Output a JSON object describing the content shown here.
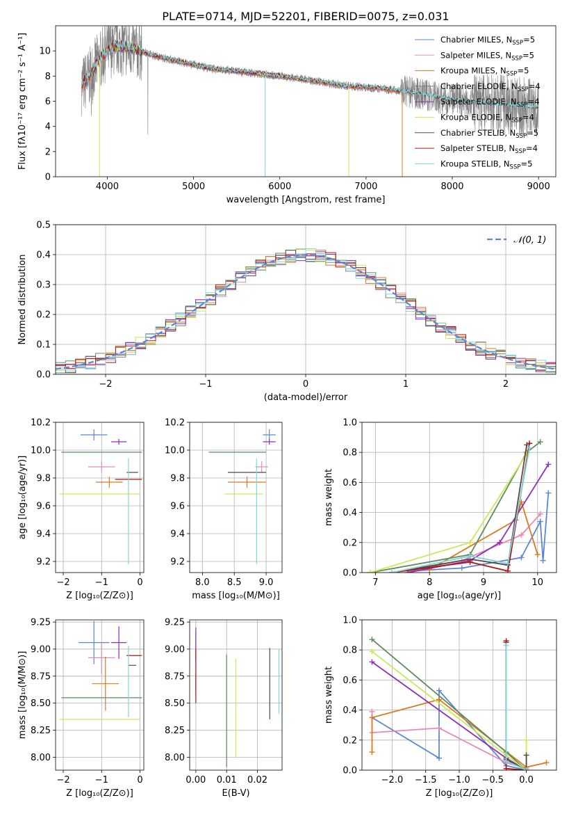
{
  "title": "PLATE=0714, MJD=52201, FIBERID=0075, z=0.031",
  "colors": {
    "chabrier_miles": "#5b86d6",
    "salpeter_miles": "#e58ab8",
    "kroupa_miles": "#d97a1e",
    "chabrier_elodie": "#5e8c5c",
    "salpeter_elodie": "#8e2fb5",
    "kroupa_elodie": "#cce85a",
    "chabrier_stelib": "#5a4646",
    "salpeter_stelib": "#b01414",
    "kroupa_stelib": "#7fd6d6",
    "data": "#808080",
    "normal": "#5b86d6",
    "grid": "#b0b0b0"
  },
  "chart_data": [
    {
      "id": "spectrum",
      "type": "line",
      "xlabel": "wavelength [Angstrom, rest frame]",
      "ylabel": "Flux [fλ10⁻¹⁷ erg cm⁻² s⁻¹ A⁻¹]",
      "xlim": [
        3400,
        9200
      ],
      "ylim": [
        0,
        12
      ],
      "xticks": [
        4000,
        5000,
        6000,
        7000,
        8000,
        9000
      ],
      "yticks": [
        0,
        2,
        4,
        6,
        8,
        10
      ],
      "grid": false,
      "legend_position": "top-right",
      "legend": [
        {
          "key": "chabrier_miles",
          "label": "Chabrier MILES, N",
          "sub": "SSP",
          "suffix": "=5"
        },
        {
          "key": "salpeter_miles",
          "label": "Salpeter MILES, N",
          "sub": "SSP",
          "suffix": "=5"
        },
        {
          "key": "kroupa_miles",
          "label": "Kroupa MILES, N",
          "sub": "SSP",
          "suffix": "=5"
        },
        {
          "key": "chabrier_elodie",
          "label": "Chabrier ELODIE, N",
          "sub": "SSP",
          "suffix": "=4"
        },
        {
          "key": "salpeter_elodie",
          "label": "Salpeter ELODIE, N",
          "sub": "SSP",
          "suffix": "=4"
        },
        {
          "key": "kroupa_elodie",
          "label": "Kroupa ELODIE, N",
          "sub": "SSP",
          "suffix": "=4"
        },
        {
          "key": "chabrier_stelib",
          "label": "Chabrier STELIB, N",
          "sub": "SSP",
          "suffix": "=5"
        },
        {
          "key": "salpeter_stelib",
          "label": "Salpeter STELIB, N",
          "sub": "SSP",
          "suffix": "=4"
        },
        {
          "key": "kroupa_stelib",
          "label": "Kroupa STELIB, N",
          "sub": "SSP",
          "suffix": "=5"
        }
      ],
      "continuum": [
        [
          3700,
          7.2
        ],
        [
          3800,
          8.0
        ],
        [
          3900,
          9.2
        ],
        [
          4000,
          10.0
        ],
        [
          4100,
          10.4
        ],
        [
          4300,
          10.2
        ],
        [
          4500,
          9.7
        ],
        [
          4800,
          9.2
        ],
        [
          5200,
          8.6
        ],
        [
          5600,
          8.3
        ],
        [
          6000,
          8.0
        ],
        [
          6400,
          7.6
        ],
        [
          6800,
          7.2
        ],
        [
          7200,
          7.0
        ],
        [
          7600,
          6.6
        ],
        [
          8000,
          6.1
        ],
        [
          8400,
          5.8
        ],
        [
          8800,
          5.6
        ],
        [
          9000,
          5.5
        ]
      ],
      "model_ranges": {
        "chabrier_miles": [
          3700,
          7400
        ],
        "salpeter_miles": [
          3700,
          7400
        ],
        "kroupa_miles": [
          3700,
          7400
        ],
        "chabrier_elodie": [
          3900,
          6800
        ],
        "salpeter_elodie": [
          3900,
          6800
        ],
        "kroupa_elodie": [
          3900,
          6800
        ],
        "chabrier_stelib": [
          3700,
          9000
        ],
        "salpeter_stelib": [
          3700,
          7400
        ],
        "kroupa_stelib": [
          3700,
          9000
        ]
      }
    },
    {
      "id": "residuals",
      "type": "histogram",
      "xlabel": "(data-model)/error",
      "ylabel": "Normed distribution",
      "xlim": [
        -2.5,
        2.5
      ],
      "ylim": [
        0,
        0.5
      ],
      "xticks": [
        -2,
        -1,
        0,
        1,
        2
      ],
      "yticks": [
        0.0,
        0.1,
        0.2,
        0.3,
        0.4,
        0.5
      ],
      "grid": true,
      "legend_position": "top-right",
      "legend": [
        {
          "label": "𝒩(0, 1)",
          "style": "dashed"
        }
      ],
      "bin_width": 0.1,
      "bin_start": -2.5
    },
    {
      "id": "age_vs_Z",
      "type": "scatter",
      "xlabel": "Z [log₁₀(Z/Z⊙)]",
      "ylabel": "age  [log₁₀(age/yr)]",
      "xlim": [
        -2.2,
        0.1
      ],
      "ylim": [
        9.12,
        10.2
      ],
      "xticks": [
        -2,
        -1,
        0
      ],
      "yticks": [
        9.2,
        9.4,
        9.6,
        9.8,
        10.0,
        10.2
      ],
      "grid": true,
      "points": [
        {
          "key": "chabrier_miles",
          "x": -1.2,
          "xerr": 0.35,
          "y": 10.11,
          "yerr": 0.04
        },
        {
          "key": "salpeter_miles",
          "x": -1.0,
          "xerr": 0.35,
          "y": 9.88,
          "yerr": 0.04
        },
        {
          "key": "kroupa_miles",
          "x": -0.8,
          "xerr": 0.35,
          "y": 9.77,
          "yerr": 0.04
        },
        {
          "key": "chabrier_elodie",
          "x": -1.0,
          "xerr": 1.05,
          "y": 9.985,
          "yerr": 0.0
        },
        {
          "key": "salpeter_elodie",
          "x": -0.55,
          "xerr": 0.2,
          "y": 10.06,
          "yerr": 0.02
        },
        {
          "key": "kroupa_elodie",
          "x": -1.05,
          "xerr": 1.05,
          "y": 9.685,
          "yerr": 0.0
        },
        {
          "key": "chabrier_stelib",
          "x": -0.2,
          "xerr": 0.15,
          "y": 9.84,
          "yerr": 0.0
        },
        {
          "key": "salpeter_stelib",
          "x": -0.3,
          "xerr": 0.35,
          "y": 9.79,
          "yerr": 0.0
        },
        {
          "key": "kroupa_stelib",
          "x": -0.3,
          "xerr": 0.0,
          "y": 9.56,
          "yerr": 0.38
        }
      ]
    },
    {
      "id": "age_vs_mass",
      "type": "scatter",
      "xlabel": "mass [log₁₀(M/M⊙)]",
      "ylabel": "",
      "xlim": [
        7.8,
        9.25
      ],
      "ylim": [
        9.12,
        10.2
      ],
      "xticks": [
        8.0,
        8.5,
        9.0
      ],
      "yticks": [
        9.2,
        9.4,
        9.6,
        9.8,
        10.0,
        10.2
      ],
      "grid": true,
      "points": [
        {
          "key": "chabrier_miles",
          "x": 9.05,
          "xerr": 0.1,
          "y": 10.11,
          "yerr": 0.04
        },
        {
          "key": "salpeter_miles",
          "x": 8.93,
          "xerr": 0.1,
          "y": 9.88,
          "yerr": 0.04
        },
        {
          "key": "kroupa_miles",
          "x": 8.7,
          "xerr": 0.3,
          "y": 9.77,
          "yerr": 0.04
        },
        {
          "key": "chabrier_elodie",
          "x": 8.55,
          "xerr": 0.45,
          "y": 9.985,
          "yerr": 0.0
        },
        {
          "key": "salpeter_elodie",
          "x": 9.05,
          "xerr": 0.1,
          "y": 10.06,
          "yerr": 0.02
        },
        {
          "key": "kroupa_elodie",
          "x": 8.65,
          "xerr": 0.3,
          "y": 9.685,
          "yerr": 0.0
        },
        {
          "key": "chabrier_stelib",
          "x": 8.7,
          "xerr": 0.3,
          "y": 9.84,
          "yerr": 0.0
        },
        {
          "key": "salpeter_stelib",
          "x": 8.93,
          "xerr": 0.0,
          "y": 9.8,
          "yerr": 0.0
        },
        {
          "key": "kroupa_stelib",
          "x": 8.85,
          "xerr": 0.0,
          "y": 9.56,
          "yerr": 0.38
        }
      ]
    },
    {
      "id": "weight_vs_age",
      "type": "line",
      "xlabel": "age  [log₁₀(age/yr)]",
      "ylabel": "mass weight",
      "xlim": [
        6.75,
        10.35
      ],
      "ylim": [
        0,
        1.0
      ],
      "xticks": [
        7,
        8,
        9,
        10
      ],
      "yticks": [
        0.0,
        0.2,
        0.4,
        0.6,
        0.8,
        1.0
      ],
      "grid": true,
      "series": [
        {
          "key": "chabrier_miles",
          "x": [
            7.6,
            8.6,
            9.7,
            10.05,
            10.1,
            10.2
          ],
          "y": [
            0.01,
            0.03,
            0.1,
            0.34,
            0.08,
            0.53
          ]
        },
        {
          "key": "salpeter_miles",
          "x": [
            7.6,
            8.6,
            9.7,
            10.05
          ],
          "y": [
            0.01,
            0.08,
            0.25,
            0.39
          ]
        },
        {
          "key": "kroupa_miles",
          "x": [
            8.0,
            9.6,
            9.7,
            10.0
          ],
          "y": [
            0.02,
            0.35,
            0.47,
            0.12
          ]
        },
        {
          "key": "chabrier_elodie",
          "x": [
            6.9,
            8.75,
            9.8,
            10.05
          ],
          "y": [
            0.0,
            0.12,
            0.8,
            0.87
          ]
        },
        {
          "key": "salpeter_elodie",
          "x": [
            7.6,
            8.75,
            9.3,
            10.2
          ],
          "y": [
            0.0,
            0.08,
            0.2,
            0.72
          ]
        },
        {
          "key": "kroupa_elodie",
          "x": [
            6.9,
            8.75,
            9.8
          ],
          "y": [
            0.0,
            0.2,
            0.79
          ]
        },
        {
          "key": "chabrier_stelib",
          "x": [
            7.3,
            8.75,
            9.45,
            9.8
          ],
          "y": [
            0.0,
            0.09,
            0.05,
            0.85
          ]
        },
        {
          "key": "salpeter_stelib",
          "x": [
            7.3,
            8.75,
            9.45,
            9.85
          ],
          "y": [
            0.0,
            0.07,
            0.01,
            0.86
          ]
        },
        {
          "key": "kroupa_stelib",
          "x": [
            7.3,
            8.75,
            9.45,
            9.85
          ],
          "y": [
            0.0,
            0.11,
            0.06,
            0.83
          ]
        }
      ]
    },
    {
      "id": "mass_vs_Z",
      "type": "scatter",
      "xlabel": "Z [log₁₀(Z/Z⊙)]",
      "ylabel": "mass [log₁₀(M/M⊙)]",
      "xlim": [
        -2.2,
        0.1
      ],
      "ylim": [
        7.88,
        9.27
      ],
      "xticks": [
        -2,
        -1,
        0
      ],
      "yticks": [
        8.0,
        8.25,
        8.5,
        8.75,
        9.0,
        9.25
      ],
      "grid": true,
      "points": [
        {
          "key": "chabrier_miles",
          "x": -1.2,
          "xerr": 0.4,
          "y": 9.06,
          "yerr": 0.2
        },
        {
          "key": "salpeter_miles",
          "x": -1.0,
          "xerr": 0.35,
          "y": 8.92,
          "yerr": 0.15
        },
        {
          "key": "kroupa_miles",
          "x": -0.9,
          "xerr": 0.35,
          "y": 8.68,
          "yerr": 0.25
        },
        {
          "key": "chabrier_elodie",
          "x": -1.0,
          "xerr": 1.05,
          "y": 8.55,
          "yerr": 0.0
        },
        {
          "key": "salpeter_elodie",
          "x": -0.55,
          "xerr": 0.2,
          "y": 9.06,
          "yerr": 0.15
        },
        {
          "key": "kroupa_elodie",
          "x": -1.05,
          "xerr": 1.05,
          "y": 8.35,
          "yerr": 0.0
        },
        {
          "key": "chabrier_stelib",
          "x": -0.2,
          "xerr": 0.1,
          "y": 8.85,
          "yerr": 0.0
        },
        {
          "key": "salpeter_stelib",
          "x": -0.15,
          "xerr": 0.2,
          "y": 8.94,
          "yerr": 0.0
        },
        {
          "key": "kroupa_stelib",
          "x": -0.3,
          "xerr": 0.0,
          "y": 8.7,
          "yerr": 0.33
        }
      ]
    },
    {
      "id": "mass_vs_ebv",
      "type": "scatter",
      "xlabel": "E(B-V)",
      "ylabel": "",
      "xlim": [
        -0.002,
        0.028
      ],
      "ylim": [
        7.88,
        9.27
      ],
      "xticks": [
        0.0,
        0.01,
        0.02
      ],
      "yticks": [
        8.0,
        8.25,
        8.5,
        8.75,
        9.0,
        9.25
      ],
      "grid": true,
      "points": [
        {
          "key": "chabrier_miles",
          "x": 0.0,
          "xerr": 0.0,
          "y": 9.06,
          "yerr": 0.1
        },
        {
          "key": "salpeter_miles",
          "x": 0.0,
          "xerr": 0.0,
          "y": 8.92,
          "yerr": 0.1
        },
        {
          "key": "kroupa_miles",
          "x": 0.0,
          "xerr": 0.0,
          "y": 8.68,
          "yerr": 0.1
        },
        {
          "key": "chabrier_elodie",
          "x": 0.01,
          "xerr": 0.0,
          "y": 8.43,
          "yerr": 0.52
        },
        {
          "key": "salpeter_elodie",
          "x": 0.0,
          "xerr": 0.0,
          "y": 9.05,
          "yerr": 0.15
        },
        {
          "key": "kroupa_elodie",
          "x": 0.013,
          "xerr": 0.0,
          "y": 8.45,
          "yerr": 0.46
        },
        {
          "key": "chabrier_stelib",
          "x": 0.024,
          "xerr": 0.0,
          "y": 8.68,
          "yerr": 0.33
        },
        {
          "key": "salpeter_stelib",
          "x": 0.0,
          "xerr": 0.0,
          "y": 8.75,
          "yerr": 0.25
        },
        {
          "key": "kroupa_stelib",
          "x": 0.027,
          "xerr": 0.0,
          "y": 8.7,
          "yerr": 0.3
        }
      ]
    },
    {
      "id": "weight_vs_Z",
      "type": "line",
      "xlabel": "Z [log₁₀(Z/Z⊙)]",
      "ylabel": "mass weight",
      "xlim": [
        -2.45,
        0.45
      ],
      "ylim": [
        0,
        1.0
      ],
      "xticks": [
        -2.0,
        -1.5,
        -1.0,
        -0.5,
        0.0
      ],
      "yticks": [
        0.0,
        0.2,
        0.4,
        0.6,
        0.8,
        1.0
      ],
      "grid": true,
      "series": [
        {
          "key": "chabrier_miles",
          "x": [
            -2.3,
            -1.3,
            -1.3,
            -0.3,
            0.0
          ],
          "y": [
            0.35,
            0.08,
            0.53,
            0.03,
            0.0
          ]
        },
        {
          "key": "salpeter_miles",
          "x": [
            -2.3,
            -2.3,
            -1.3,
            -0.3,
            0.0
          ],
          "y": [
            0.39,
            0.25,
            0.28,
            0.05,
            0.01
          ]
        },
        {
          "key": "kroupa_miles",
          "x": [
            -2.3,
            -2.3,
            -1.3,
            0.0,
            0.3
          ],
          "y": [
            0.12,
            0.35,
            0.47,
            0.02,
            0.05
          ]
        },
        {
          "key": "chabrier_elodie",
          "x": [
            -2.3,
            -0.3,
            0.0
          ],
          "y": [
            0.87,
            0.12,
            0.0
          ]
        },
        {
          "key": "salpeter_elodie",
          "x": [
            -2.3,
            -0.3,
            0.0
          ],
          "y": [
            0.72,
            0.08,
            0.0
          ]
        },
        {
          "key": "kroupa_elodie",
          "x": [
            -2.3,
            -0.3,
            0.0,
            0.0
          ],
          "y": [
            0.79,
            0.1,
            0.0,
            0.2
          ]
        },
        {
          "key": "chabrier_stelib",
          "x": [
            -0.3,
            -0.3,
            0.0,
            0.0
          ],
          "y": [
            0.85,
            0.07,
            0.0,
            0.1
          ]
        },
        {
          "key": "salpeter_stelib",
          "x": [
            -0.3,
            -0.3,
            0.0
          ],
          "y": [
            0.86,
            0.01,
            0.0
          ]
        },
        {
          "key": "kroupa_stelib",
          "x": [
            -0.3,
            -0.3,
            0.0
          ],
          "y": [
            0.83,
            0.06,
            0.0
          ]
        }
      ]
    }
  ]
}
